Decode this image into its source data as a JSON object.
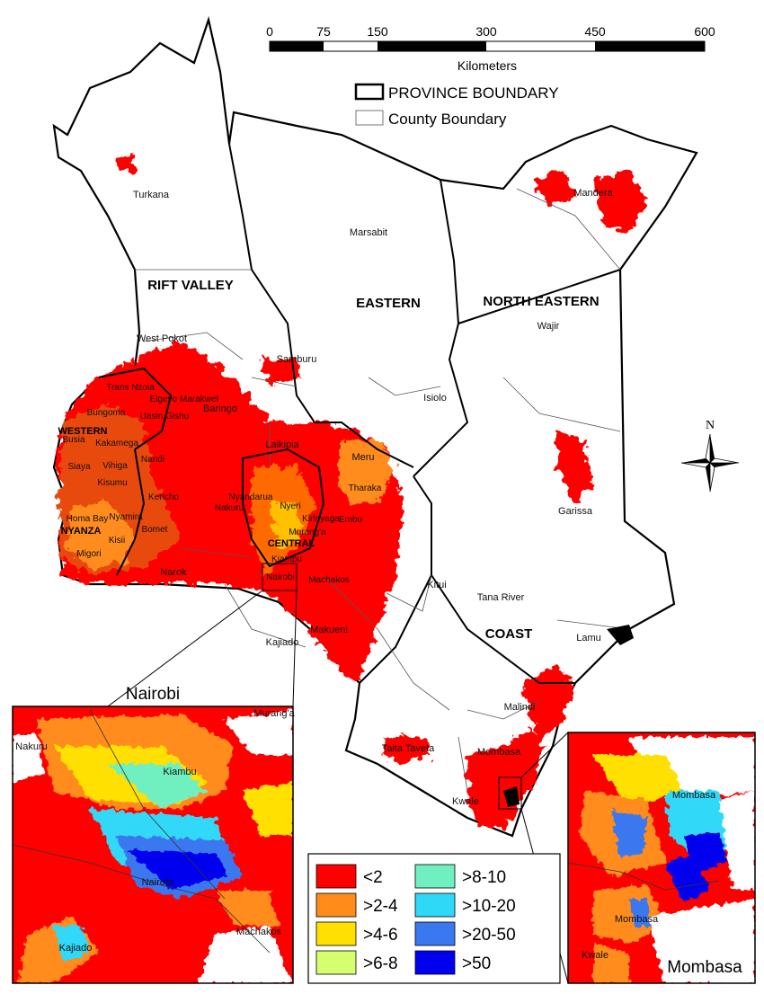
{
  "scale_bar": {
    "ticks": [
      "0",
      "75",
      "150",
      "300",
      "450",
      "600"
    ],
    "unit": "Kilometers"
  },
  "boundary_legend": {
    "province": "PROVINCE BOUNDARY",
    "county": "County Boundary"
  },
  "provinces": [
    "RIFT VALLEY",
    "EASTERN",
    "NORTH EASTERN",
    "WESTERN",
    "NYANZA",
    "CENTRAL",
    "COAST"
  ],
  "counties": [
    "Turkana",
    "Marsabit",
    "Mandera",
    "Wajir",
    "West Pokot",
    "Samburu",
    "Isiolo",
    "Trans Nzoia",
    "Elgeyo Marakwet",
    "Bungoma",
    "Uasin Gishu",
    "Baringo",
    "Busia",
    "Kakamega",
    "Siaya",
    "Vihiga",
    "Nandi",
    "Kisumu",
    "Kericho",
    "Laikipia",
    "Meru",
    "Nyandarua",
    "Nakuru",
    "Nyeri",
    "Homa Bay",
    "Nyamira",
    "Kirinyaga",
    "Tharaka",
    "Embu",
    "Bomet",
    "Kisii",
    "Migori",
    "Murang'a",
    "Kiambu",
    "Narok",
    "Nairobi",
    "Machakos",
    "Kitui",
    "Garissa",
    "Tana River",
    "Makueni",
    "Kajiado",
    "Lamu",
    "Malindi",
    "Taita Taveta",
    "Mombasa",
    "Kwale"
  ],
  "density_legend": [
    {
      "label": "<2",
      "color": "#ff0000"
    },
    {
      "label": ">2-4",
      "color": "#ff8c1a"
    },
    {
      "label": ">4-6",
      "color": "#ffe000"
    },
    {
      "label": ">6-8",
      "color": "#d6ff70"
    },
    {
      "label": ">8-10",
      "color": "#70f0c0"
    },
    {
      "label": ">10-20",
      "color": "#30d8f8"
    },
    {
      "label": ">20-50",
      "color": "#3a78f0"
    },
    {
      "label": ">50",
      "color": "#0000ee"
    }
  ],
  "insets": {
    "nairobi": {
      "title": "Nairobi",
      "labels": [
        "Nakuru",
        "Murang'a",
        "Kiambu",
        "Nairobi",
        "Kajiado",
        "Machakos"
      ]
    },
    "mombasa": {
      "title": "Mombasa",
      "labels": [
        "Mombasa",
        "Mombasa",
        "Kwale"
      ]
    }
  },
  "north_arrow": {
    "label": "N"
  }
}
